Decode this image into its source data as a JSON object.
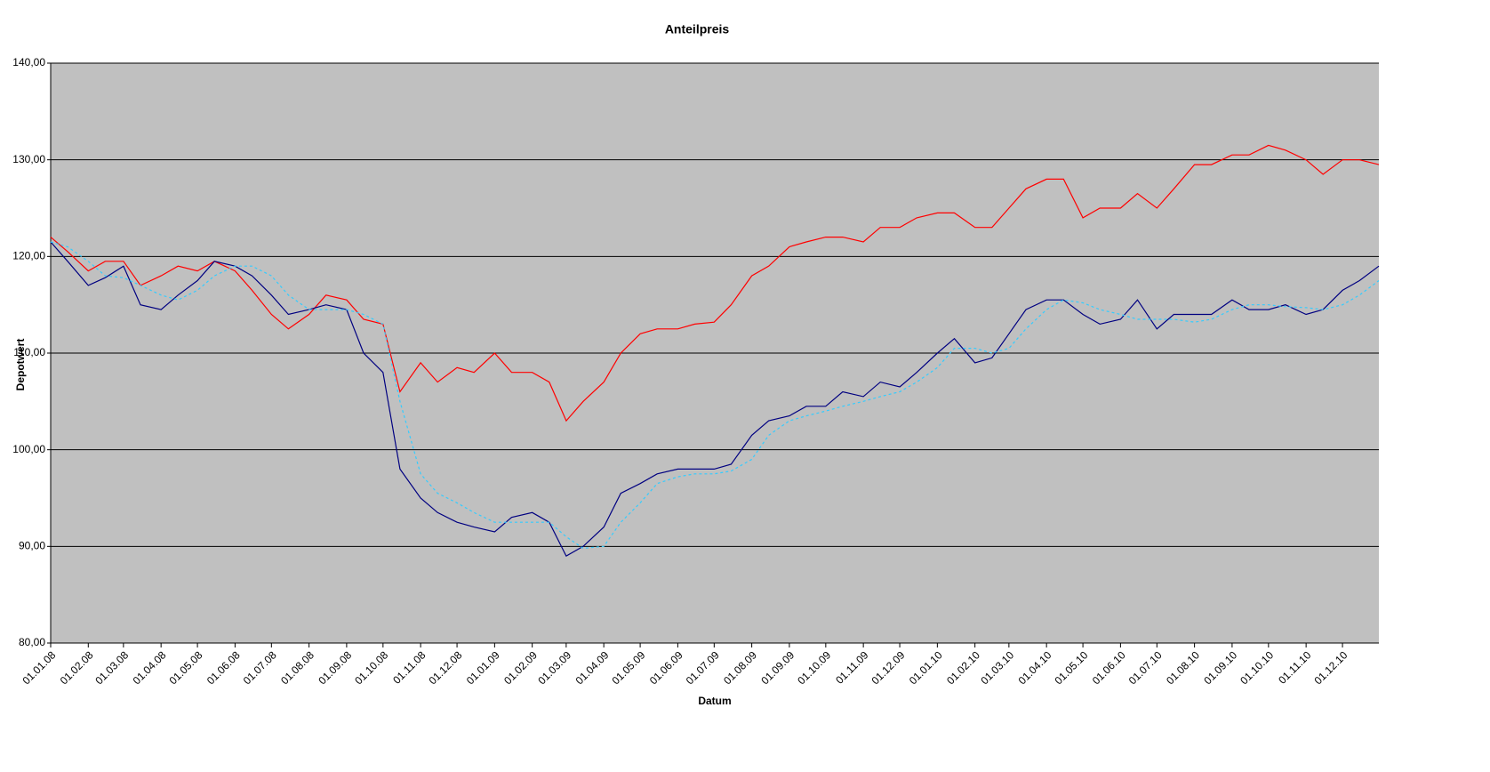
{
  "chart_data": {
    "type": "line",
    "title": "Anteilpreis",
    "x_label": "Datum",
    "y_label": "Depotwert",
    "x": [
      "01.01.08",
      "15.01.08",
      "01.02.08",
      "15.02.08",
      "01.03.08",
      "15.03.08",
      "01.04.08",
      "15.04.08",
      "01.05.08",
      "15.05.08",
      "01.06.08",
      "15.06.08",
      "01.07.08",
      "15.07.08",
      "01.08.08",
      "15.08.08",
      "01.09.08",
      "15.09.08",
      "01.10.08",
      "15.10.08",
      "01.11.08",
      "15.11.08",
      "01.12.08",
      "15.12.08",
      "01.01.09",
      "15.01.09",
      "01.02.09",
      "15.02.09",
      "01.03.09",
      "15.03.09",
      "01.04.09",
      "15.04.09",
      "01.05.09",
      "15.05.09",
      "01.06.09",
      "15.06.09",
      "01.07.09",
      "15.07.09",
      "01.08.09",
      "15.08.09",
      "01.09.09",
      "15.09.09",
      "01.10.09",
      "15.10.09",
      "01.11.09",
      "15.11.09",
      "01.12.09",
      "15.12.09",
      "01.01.10",
      "15.01.10",
      "01.02.10",
      "15.02.10",
      "01.03.10",
      "15.03.10",
      "01.04.10",
      "15.04.10",
      "01.05.10",
      "15.05.10",
      "01.06.10",
      "15.06.10",
      "01.07.10",
      "15.07.10",
      "01.08.10",
      "15.08.10",
      "01.09.10",
      "15.09.10",
      "01.10.10",
      "15.10.10",
      "01.11.10",
      "15.11.10",
      "01.12.10",
      "15.12.10",
      "31.12.10"
    ],
    "series": [
      {
        "color": "#ff0000",
        "dashed": false,
        "values": [
          122,
          120.5,
          118.5,
          119.5,
          119.5,
          117,
          118,
          119,
          118.5,
          119.5,
          118.5,
          116.5,
          114,
          112.5,
          114,
          116,
          115.5,
          113.5,
          113,
          106,
          109,
          107,
          108.5,
          108,
          110,
          108,
          108,
          107,
          103,
          105,
          107,
          110,
          112,
          112.5,
          112.5,
          113,
          113.2,
          115,
          118,
          119,
          121,
          121.5,
          122,
          122,
          121.5,
          123,
          123,
          124,
          124.5,
          124.5,
          123,
          123,
          125,
          127,
          128,
          128,
          124,
          125,
          125,
          126.5,
          125,
          127,
          129.5,
          129.5,
          130.5,
          130.5,
          131.5,
          131,
          130,
          128.5,
          130,
          130,
          129.5
        ]
      },
      {
        "color": "#000080",
        "dashed": false,
        "values": [
          121.5,
          119.5,
          117,
          117.8,
          119,
          115,
          114.5,
          116,
          117.5,
          119.5,
          119,
          118,
          116,
          114,
          114.5,
          115,
          114.5,
          110,
          108,
          98,
          95,
          93.5,
          92.5,
          92,
          91.5,
          93,
          93.5,
          92.5,
          89,
          90,
          92,
          95.5,
          96.5,
          97.5,
          98,
          98,
          98,
          98.5,
          101.5,
          103,
          103.5,
          104.5,
          104.5,
          106,
          105.5,
          107,
          106.5,
          108,
          110,
          111.5,
          109,
          109.5,
          112,
          114.5,
          115.5,
          115.5,
          114,
          113,
          113.5,
          115.5,
          112.5,
          114,
          114,
          114,
          115.5,
          114.5,
          114.5,
          115,
          114,
          114.5,
          116.5,
          117.5,
          119
        ]
      },
      {
        "color": "#33ccff",
        "dashed": true,
        "values": [
          121.5,
          121,
          119.5,
          118,
          117.8,
          117,
          116,
          115.5,
          116.5,
          118,
          119,
          119,
          118,
          116,
          114.5,
          114.5,
          114.5,
          114,
          113,
          105,
          97.5,
          95.5,
          94.5,
          93.5,
          92.5,
          92.5,
          92.5,
          92.5,
          91,
          89.8,
          90,
          92.5,
          94.5,
          96.5,
          97.2,
          97.5,
          97.5,
          97.8,
          99,
          101.5,
          103,
          103.5,
          104,
          104.5,
          105,
          105.5,
          106,
          107,
          108.5,
          110.5,
          110.5,
          110,
          110.5,
          112.5,
          114.5,
          115.5,
          115.2,
          114.5,
          114,
          113.5,
          113.5,
          113.5,
          113.2,
          113.5,
          114.5,
          115,
          115,
          114.8,
          114.7,
          114.5,
          115,
          116,
          117.5
        ]
      }
    ],
    "xlim": [
      "01.01.08",
      "31.12.10"
    ],
    "xticks": [
      "01.01.08",
      "01.02.08",
      "01.03.08",
      "01.04.08",
      "01.05.08",
      "01.06.08",
      "01.07.08",
      "01.08.08",
      "01.09.08",
      "01.10.08",
      "01.11.08",
      "01.12.08",
      "01.01.09",
      "01.02.09",
      "01.03.09",
      "01.04.09",
      "01.05.09",
      "01.06.09",
      "01.07.09",
      "01.08.09",
      "01.09.09",
      "01.10.09",
      "01.11.09",
      "01.12.09",
      "01.01.10",
      "01.02.10",
      "01.03.10",
      "01.04.10",
      "01.05.10",
      "01.06.10",
      "01.07.10",
      "01.08.10",
      "01.09.10",
      "01.10.10",
      "01.11.10",
      "01.12.10"
    ],
    "ylim": [
      80,
      140
    ],
    "yticks": [
      {
        "value": 80,
        "label": "80,00"
      },
      {
        "value": 90,
        "label": "90,00"
      },
      {
        "value": 100,
        "label": "100,00"
      },
      {
        "value": 110,
        "label": "110,00"
      },
      {
        "value": 120,
        "label": "120,00"
      },
      {
        "value": 130,
        "label": "130,00"
      },
      {
        "value": 140,
        "label": "140,00"
      }
    ],
    "grid": true
  }
}
